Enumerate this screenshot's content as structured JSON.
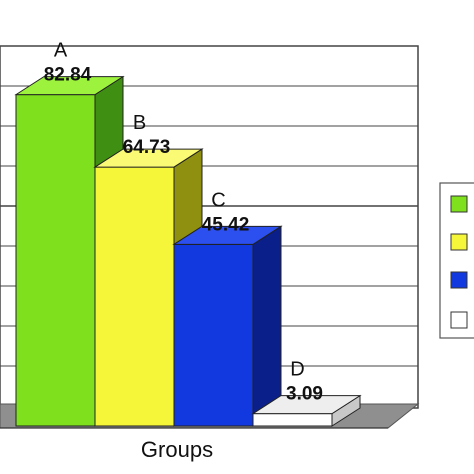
{
  "chart_data": {
    "type": "bar",
    "categories": [
      "A",
      "B",
      "C",
      "D"
    ],
    "values": [
      82.84,
      64.73,
      45.42,
      3.09
    ],
    "value_labels": [
      "82.84",
      "64.73",
      "45.42",
      "3.09"
    ],
    "xlabel": "Groups",
    "ylim": [
      0,
      100
    ],
    "grid": true,
    "legend_position": "right",
    "colors": [
      "#7fe01e",
      "#f5f53a",
      "#1238e0",
      "#ffffff"
    ],
    "side_colors": [
      "#3f8f12",
      "#8f8f10",
      "#0a1f8a",
      "#c8c8c8"
    ],
    "top_colors": [
      "#9cf23c",
      "#fafa74",
      "#2c4ff0",
      "#eeeeee"
    ]
  }
}
